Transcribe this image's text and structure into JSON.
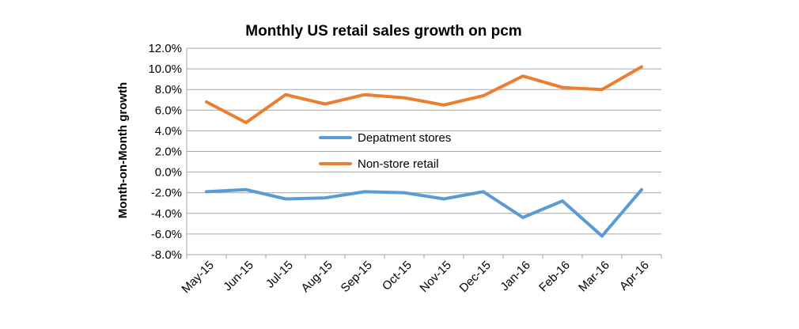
{
  "chart_data": {
    "type": "line",
    "title": "Monthly US retail sales growth on pcm",
    "xlabel": "",
    "ylabel": "Month-on-Month growth",
    "categories": [
      "May-15",
      "Jun-15",
      "Jul-15",
      "Aug-15",
      "Sep-15",
      "Oct-15",
      "Nov-15",
      "Dec-15",
      "Jan-16",
      "Feb-16",
      "Mar-16",
      "Apr-16"
    ],
    "ylim": [
      -8,
      12
    ],
    "ytick_step": 2,
    "ytick_labels": [
      "12.0%",
      "10.0%",
      "8.0%",
      "6.0%",
      "4.0%",
      "2.0%",
      "0.0%",
      "-2.0%",
      "-4.0%",
      "-6.0%",
      "-8.0%"
    ],
    "grid": true,
    "legend_position": "center",
    "series": [
      {
        "name": "Depatment stores",
        "color": "#5b9bd5",
        "values": [
          -1.9,
          -1.7,
          -2.6,
          -2.5,
          -1.9,
          -2.0,
          -2.6,
          -1.9,
          -4.4,
          -2.8,
          -6.2,
          -1.7
        ]
      },
      {
        "name": "Non-store retail",
        "color": "#ed7d31",
        "values": [
          6.8,
          4.8,
          7.5,
          6.6,
          7.5,
          7.2,
          6.5,
          7.4,
          9.3,
          8.2,
          8.0,
          10.2
        ]
      }
    ]
  }
}
